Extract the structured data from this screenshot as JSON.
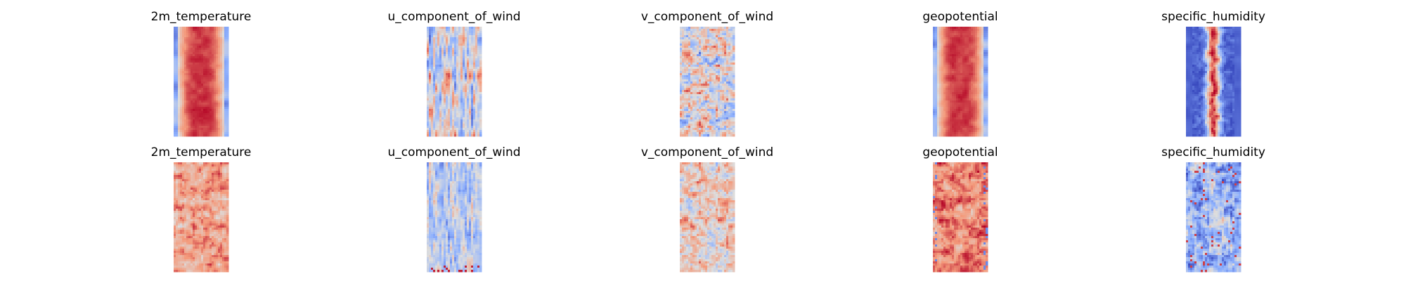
{
  "chart_data": {
    "type": "heatmap",
    "colormap": "coolwarm",
    "colormap_stops": [
      "#3b4cc0",
      "#8db0fe",
      "#dddddd",
      "#f49a7b",
      "#b40426"
    ],
    "axes": "off",
    "grid": false,
    "rows": [
      {
        "panels": [
          {
            "title": "2m_temperature",
            "pattern": "warm_core"
          },
          {
            "title": "u_component_of_wind",
            "pattern": "streaky_neutral"
          },
          {
            "title": "v_component_of_wind",
            "pattern": "speckled_neutral"
          },
          {
            "title": "geopotential",
            "pattern": "warm_core"
          },
          {
            "title": "specific_humidity",
            "pattern": "cold_edges_hot_spine"
          }
        ]
      },
      {
        "panels": [
          {
            "title": "2m_temperature",
            "pattern": "warm_noisy"
          },
          {
            "title": "u_component_of_wind",
            "pattern": "cool_streaks"
          },
          {
            "title": "v_component_of_wind",
            "pattern": "warm_speckled"
          },
          {
            "title": "geopotential",
            "pattern": "warm_noisy_strong"
          },
          {
            "title": "specific_humidity",
            "pattern": "cool_noisy"
          }
        ]
      }
    ]
  }
}
